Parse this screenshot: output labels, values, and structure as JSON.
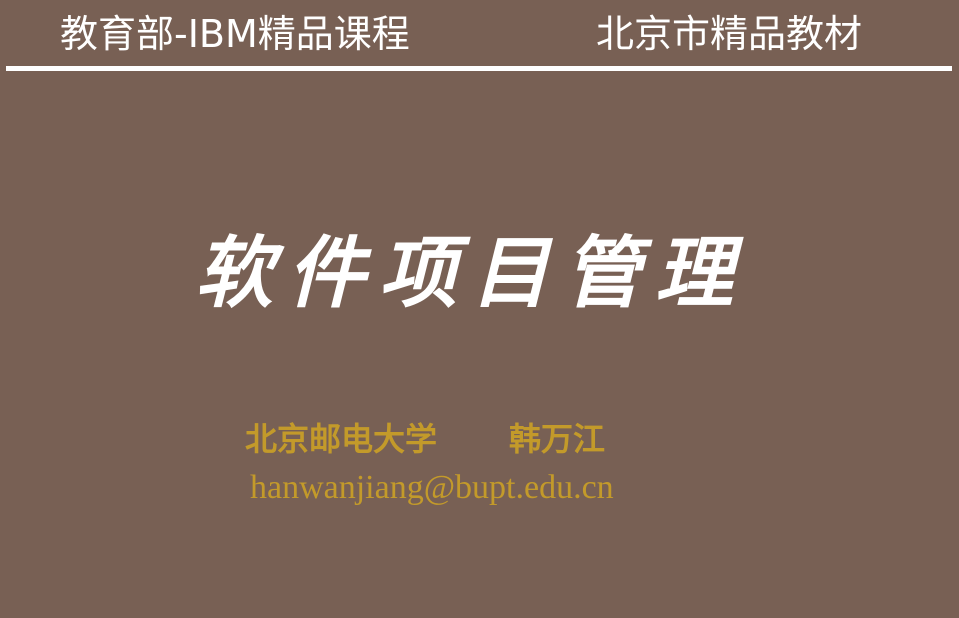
{
  "header": {
    "left_title": "教育部-IBM精品课程",
    "right_title": "北京市精品教材"
  },
  "slide": {
    "title": "软件项目管理",
    "university": "北京邮电大学",
    "author": "韩万江",
    "email": "hanwanjiang@bupt.edu.cn"
  },
  "colors": {
    "background": "#786054",
    "header_text": "#ffffff",
    "title_text": "#ffffff",
    "author_text": "#c39a2a"
  }
}
